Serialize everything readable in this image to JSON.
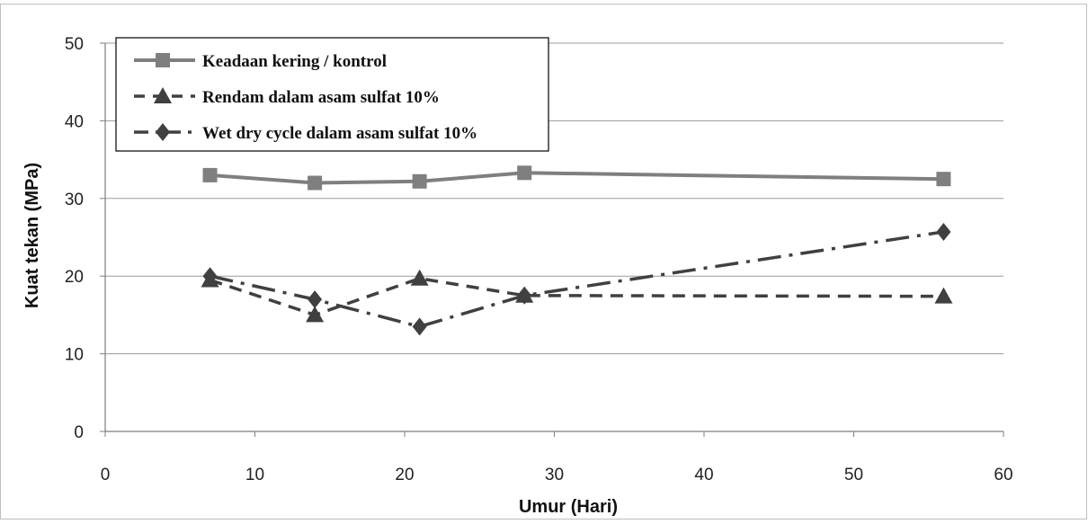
{
  "chart_data": {
    "type": "line",
    "xlabel": "Umur (Hari)",
    "ylabel": "Kuat tekan (MPa)",
    "xlim": [
      0,
      60
    ],
    "ylim": [
      0,
      50
    ],
    "xticks": [
      0,
      10,
      20,
      30,
      40,
      50,
      60
    ],
    "yticks": [
      0,
      10,
      20,
      30,
      40,
      50
    ],
    "grid": "horizontal",
    "legend": "top-left",
    "series": [
      {
        "name": "Keadaan kering / kontrol",
        "marker": "square",
        "line_style": "solid",
        "color": "#7f7f7f",
        "x": [
          7,
          14,
          21,
          28,
          56
        ],
        "y": [
          33.0,
          32.0,
          32.2,
          33.3,
          32.5
        ]
      },
      {
        "name": "Rendam dalam asam sulfat 10%",
        "marker": "triangle",
        "line_style": "dashed",
        "color": "#404040",
        "x": [
          7,
          14,
          21,
          28,
          56
        ],
        "y": [
          19.5,
          15.0,
          19.7,
          17.5,
          17.4
        ]
      },
      {
        "name": "Wet dry cycle dalam asam sulfat 10%",
        "marker": "diamond",
        "line_style": "dash-dot",
        "color": "#404040",
        "x": [
          7,
          14,
          21,
          28,
          56
        ],
        "y": [
          20.0,
          17.0,
          13.5,
          17.5,
          25.7
        ]
      }
    ]
  }
}
